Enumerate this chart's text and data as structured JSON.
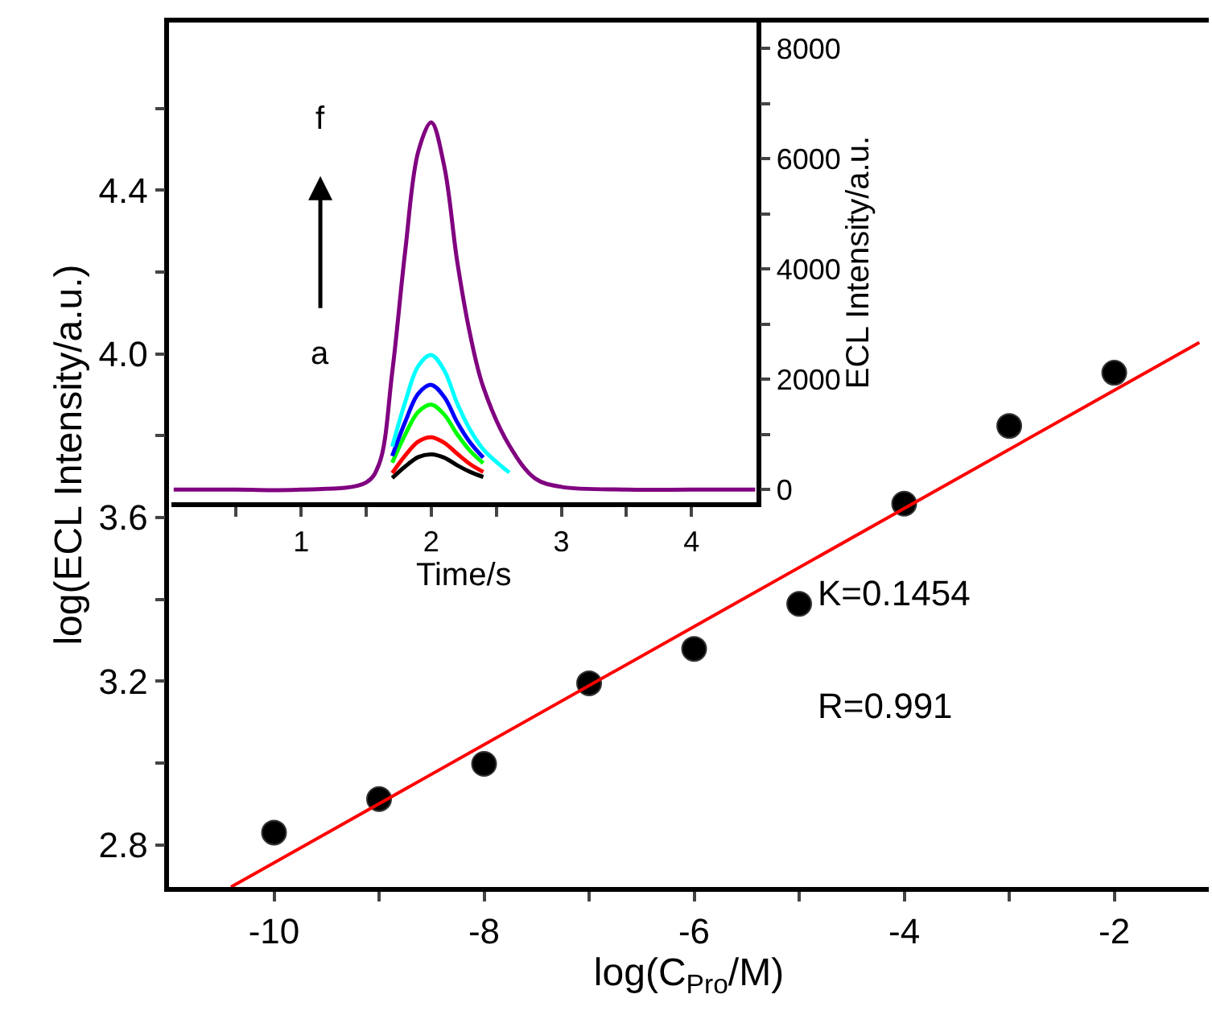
{
  "chart_data": [
    {
      "type": "scatter",
      "xlabel": "log(C$_{Pro}$/M)",
      "ylabel": "log(ECL Intensity/a.u.)",
      "xlim": [
        -11,
        -1.1
      ],
      "ylim": [
        2.697,
        4.81
      ],
      "xticks": [
        -10,
        {
          "value": -9,
          "label": null
        },
        -8,
        {
          "value": -7,
          "label": null
        },
        -6,
        {
          "value": -5,
          "label": null
        },
        -4,
        {
          "value": -3,
          "label": null
        },
        -2
      ],
      "yticks": [
        2.8,
        {
          "value": 3.0,
          "label": null
        },
        3.2,
        {
          "value": 3.4,
          "label": null
        },
        3.6,
        {
          "value": 3.8,
          "label": null
        },
        {
          "value": 4.0,
          "label": "4.0"
        },
        {
          "value": 4.2,
          "label": null
        },
        4.4,
        {
          "value": 4.6,
          "label": null
        }
      ],
      "marker": "circle",
      "series": [
        {
          "type": "scatter",
          "color": "#000000",
          "x": [
            -10,
            -9,
            -8,
            -7,
            -6,
            -5,
            -4,
            -3,
            -2
          ],
          "values": [
            2.83,
            2.912,
            2.998,
            3.195,
            3.279,
            3.389,
            3.634,
            3.824,
            3.954
          ]
        },
        {
          "type": "line",
          "marker": "none",
          "color": "#ff0000",
          "x": [
            -10.41,
            -1.19
          ],
          "values": [
            2.697,
            4.028
          ]
        }
      ],
      "annotations": [
        "K=0.1454",
        "R=0.991"
      ]
    },
    {
      "type": "line",
      "xlabel": "Time/s",
      "ylabel": "ECL Intensity/a.u.",
      "xlim": [
        0,
        4.5
      ],
      "ylim": [
        -230,
        8470
      ],
      "xticks": [
        {
          "value": 0.5,
          "label": null
        },
        1,
        {
          "value": 1.5,
          "label": null
        },
        2,
        {
          "value": 2.5,
          "label": null
        },
        3,
        {
          "value": 3.5,
          "label": null
        },
        4
      ],
      "yticks": [
        0,
        {
          "value": 1000,
          "label": null
        },
        2000,
        {
          "value": 3000,
          "label": null
        },
        4000,
        {
          "value": 5000,
          "label": null
        },
        6000,
        {
          "value": 7000,
          "label": null
        },
        8000
      ],
      "x": [
        0.02,
        0.5,
        1.0,
        1.5,
        1.6,
        1.7,
        1.8,
        1.9,
        2.0,
        2.1,
        2.2,
        2.3,
        2.4,
        2.6,
        2.8,
        3.0,
        3.5,
        4.0,
        4.49
      ],
      "series": [
        {
          "color": "#000000",
          "values": [
            null,
            null,
            null,
            null,
            null,
            210,
            420,
            590,
            640,
            580,
            440,
            320,
            230,
            null,
            null,
            null,
            null,
            null,
            null
          ]
        },
        {
          "color": "#ff0000",
          "values": [
            null,
            null,
            null,
            null,
            null,
            300,
            620,
            870,
            950,
            850,
            650,
            460,
            320,
            null,
            null,
            null,
            null,
            null,
            null
          ]
        },
        {
          "color": "#00ff00",
          "values": [
            null,
            null,
            null,
            null,
            null,
            490,
            1000,
            1410,
            1540,
            1360,
            1000,
            700,
            480,
            null,
            null,
            null,
            null,
            null,
            null
          ]
        },
        {
          "color": "#0000ff",
          "values": [
            null,
            null,
            null,
            null,
            null,
            610,
            1230,
            1740,
            1900,
            1680,
            1220,
            850,
            580,
            null,
            null,
            null,
            null,
            null,
            null
          ]
        },
        {
          "color": "#00ffff",
          "values": [
            null,
            null,
            null,
            null,
            null,
            780,
            1590,
            2240,
            2440,
            2160,
            1560,
            1080,
            730,
            310,
            null,
            null,
            null,
            null,
            null
          ]
        },
        {
          "color": "#800080",
          "values": [
            0,
            0,
            0,
            130,
            470,
            2130,
            4330,
            6130,
            6660,
            5860,
            4130,
            2800,
            1860,
            800,
            200,
            50,
            0,
            0,
            0
          ]
        }
      ],
      "annotations": [
        "a",
        "f"
      ]
    }
  ]
}
